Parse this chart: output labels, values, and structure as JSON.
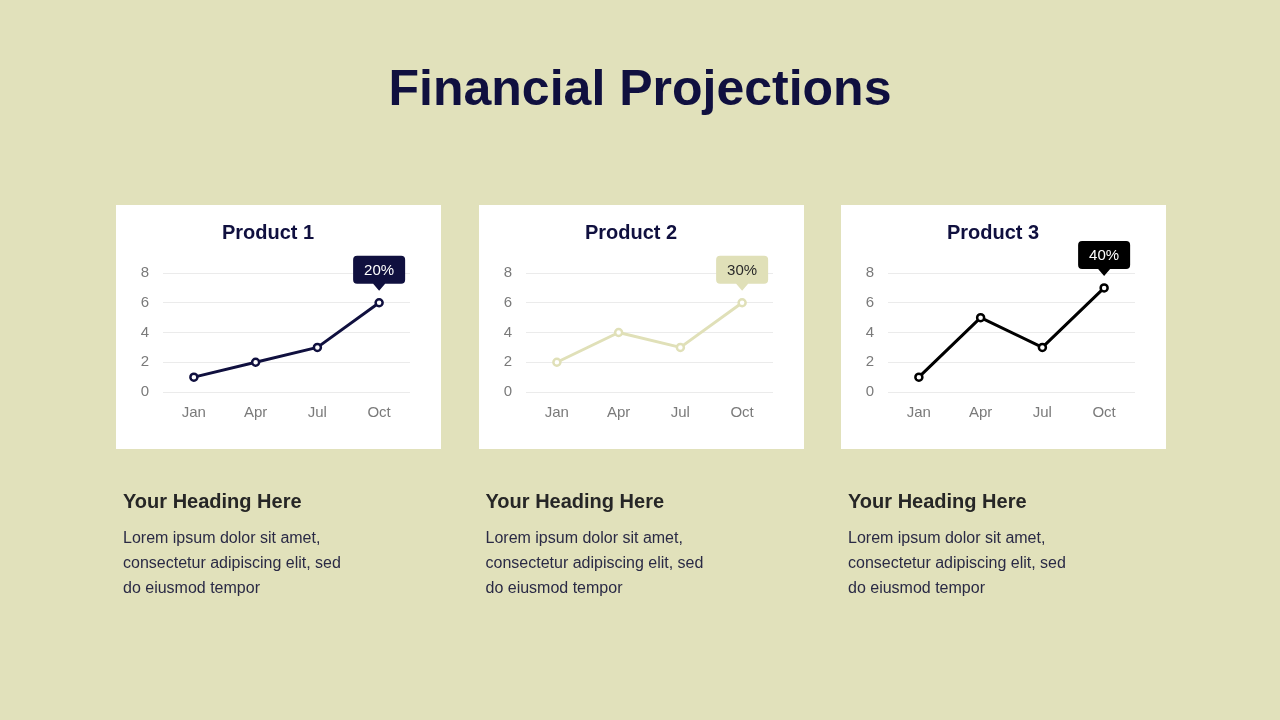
{
  "chart_data": [
    {
      "type": "other",
      "title": "Financial Projections"
    },
    {
      "type": "line",
      "title": "Product 1",
      "categories": [
        "Jan",
        "Apr",
        "Jul",
        "Oct"
      ],
      "values": [
        1,
        2,
        3,
        6
      ],
      "color": "#10103f",
      "ylim": [
        0,
        8
      ],
      "yticks": [
        0,
        2,
        4,
        6,
        8
      ],
      "grid": "y",
      "marker": "circle",
      "line_style": "solid",
      "annotations": [
        {
          "text": "20%",
          "x": "Oct",
          "y": 6
        },
        "Your Heading Here",
        "Lorem ipsum dolor sit amet, consectetur adipiscing elit, sed do eiusmod tempor"
      ]
    },
    {
      "type": "line",
      "title": "Product 2",
      "categories": [
        "Jan",
        "Apr",
        "Jul",
        "Oct"
      ],
      "values": [
        2,
        4,
        3,
        6
      ],
      "color": "#e0e0b8",
      "ylim": [
        0,
        8
      ],
      "yticks": [
        0,
        2,
        4,
        6,
        8
      ],
      "grid": "y",
      "marker": "circle",
      "line_style": "solid",
      "annotations": [
        {
          "text": "30%",
          "x": "Oct",
          "y": 6
        },
        "Your Heading Here",
        "Lorem ipsum dolor sit amet, consectetur adipiscing elit, sed do eiusmod tempor"
      ]
    },
    {
      "type": "line",
      "title": "Product 3",
      "categories": [
        "Jan",
        "Apr",
        "Jul",
        "Oct"
      ],
      "values": [
        1,
        5,
        3,
        7
      ],
      "color": "#000000",
      "ylim": [
        0,
        8
      ],
      "yticks": [
        0,
        2,
        4,
        6,
        8
      ],
      "grid": "y",
      "marker": "circle",
      "line_style": "solid",
      "annotations": [
        {
          "text": "40%",
          "x": "Oct",
          "y": 7
        },
        "Your Heading Here",
        "Lorem ipsum dolor sit amet, consectetur adipiscing elit, sed do eiusmod tempor"
      ]
    }
  ]
}
